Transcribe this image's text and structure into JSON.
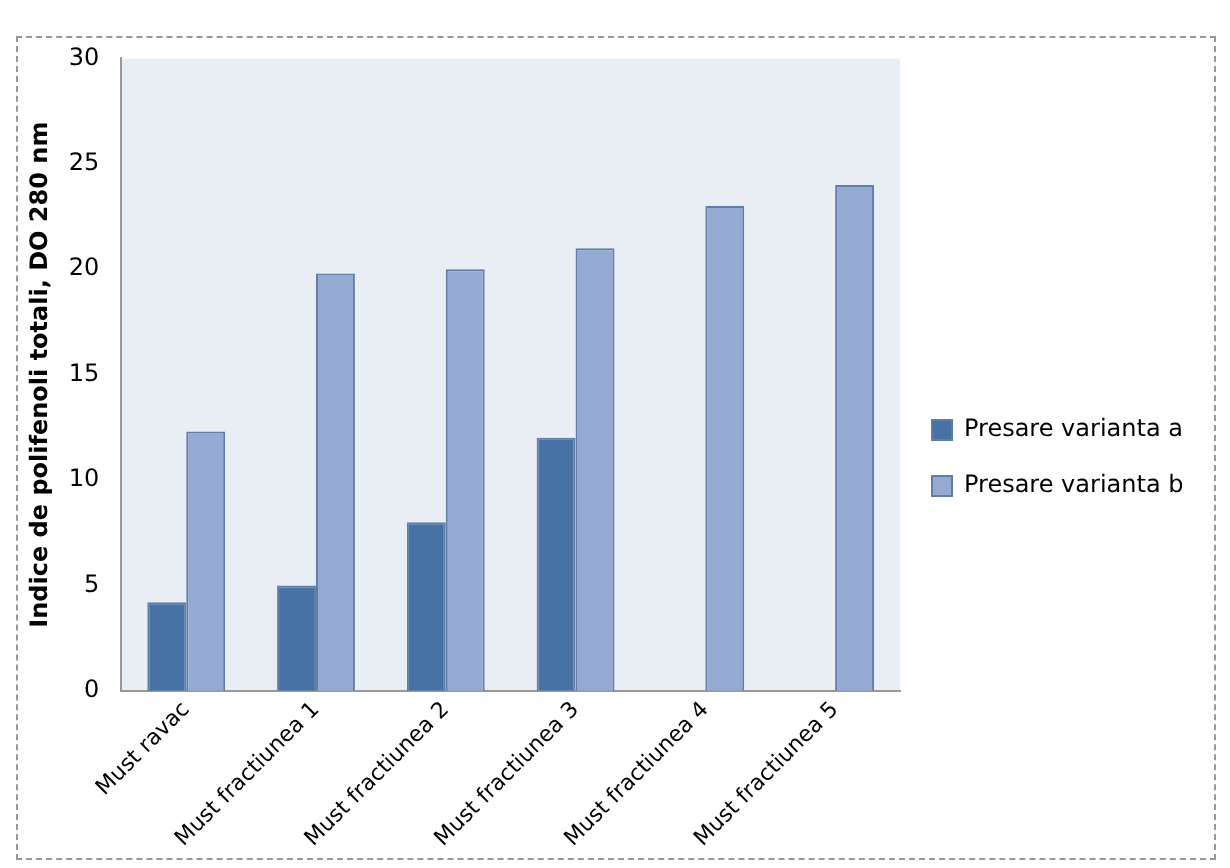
{
  "chart_data": {
    "type": "bar",
    "ylabel": "Indice de polifenoli totali, DO 280 nm",
    "categories": [
      "Must ravac",
      "Must fractiunea 1",
      "Must fractiunea 2",
      "Must fractiunea 3",
      "Must fractiunea 4",
      "Must fractiunea 5"
    ],
    "series": [
      {
        "name": "Presare varianta a",
        "color": "#4672a6",
        "values": [
          4.2,
          5,
          8,
          12,
          null,
          null
        ]
      },
      {
        "name": "Presare varianta b",
        "color": "#94aad2",
        "values": [
          12.3,
          19.8,
          20,
          21,
          23,
          24
        ]
      }
    ],
    "ylim": [
      0,
      30
    ],
    "yticks": [
      0,
      5,
      10,
      15,
      20,
      25,
      30
    ],
    "grid": false,
    "legend": "right"
  }
}
